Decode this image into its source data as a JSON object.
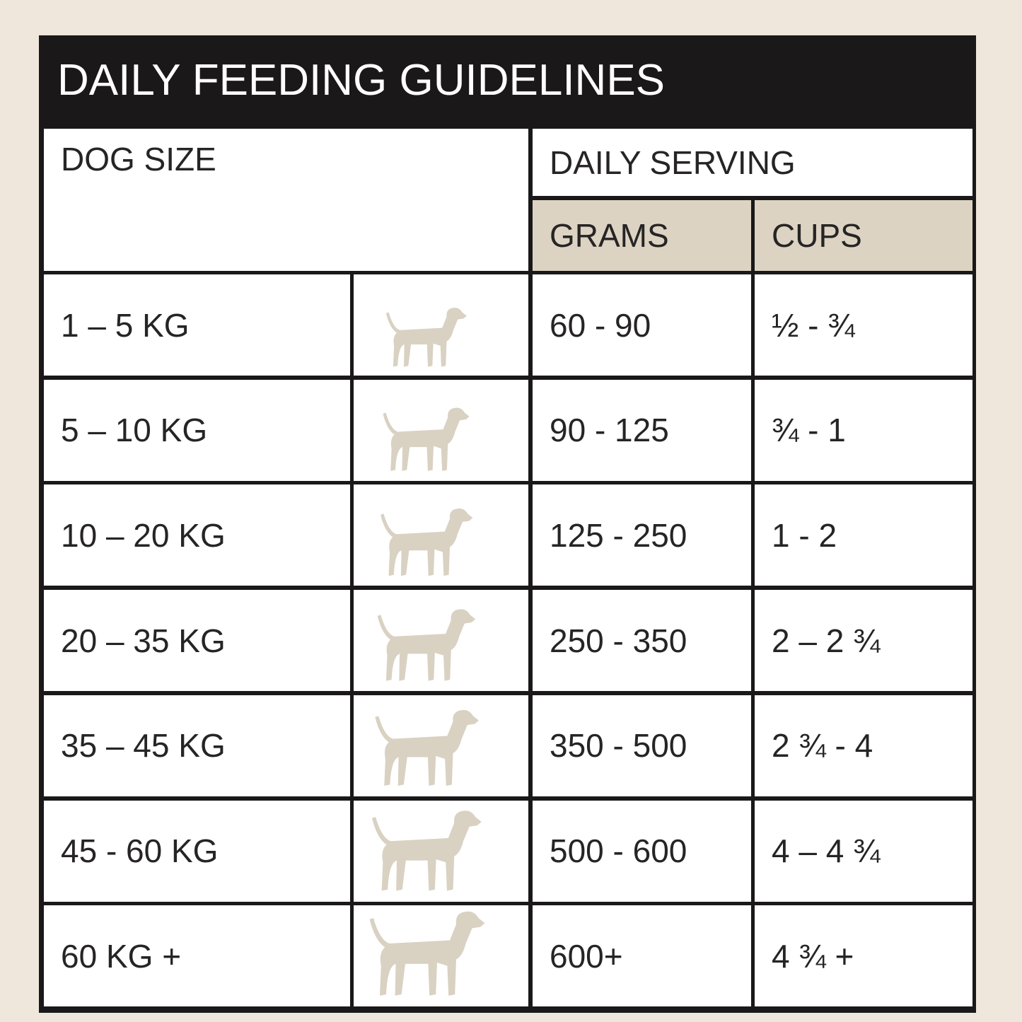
{
  "header": {
    "title": "DAILY FEEDING GUIDELINES"
  },
  "table": {
    "headers": {
      "dog_size": "DOG SIZE",
      "daily_serving": "DAILY SERVING",
      "grams": "GRAMS",
      "cups": "CUPS"
    },
    "rows": [
      [
        "1 – 5 KG",
        "60 - 90",
        "½ - ¾"
      ],
      [
        "5 – 10 KG",
        "90 - 125",
        "¾ - 1"
      ],
      [
        "10 – 20 KG",
        "125 - 250",
        "1 - 2"
      ],
      [
        "20 – 35 KG",
        "250 - 350",
        "2 – 2 ¾"
      ],
      [
        "35 – 45 KG",
        "350 - 500",
        "2 ¾ - 4"
      ],
      [
        "45 - 60 KG",
        "500 - 600",
        "4 – 4 ¾"
      ],
      [
        "60 KG +",
        "600+",
        "4 ¾ +"
      ]
    ]
  }
}
